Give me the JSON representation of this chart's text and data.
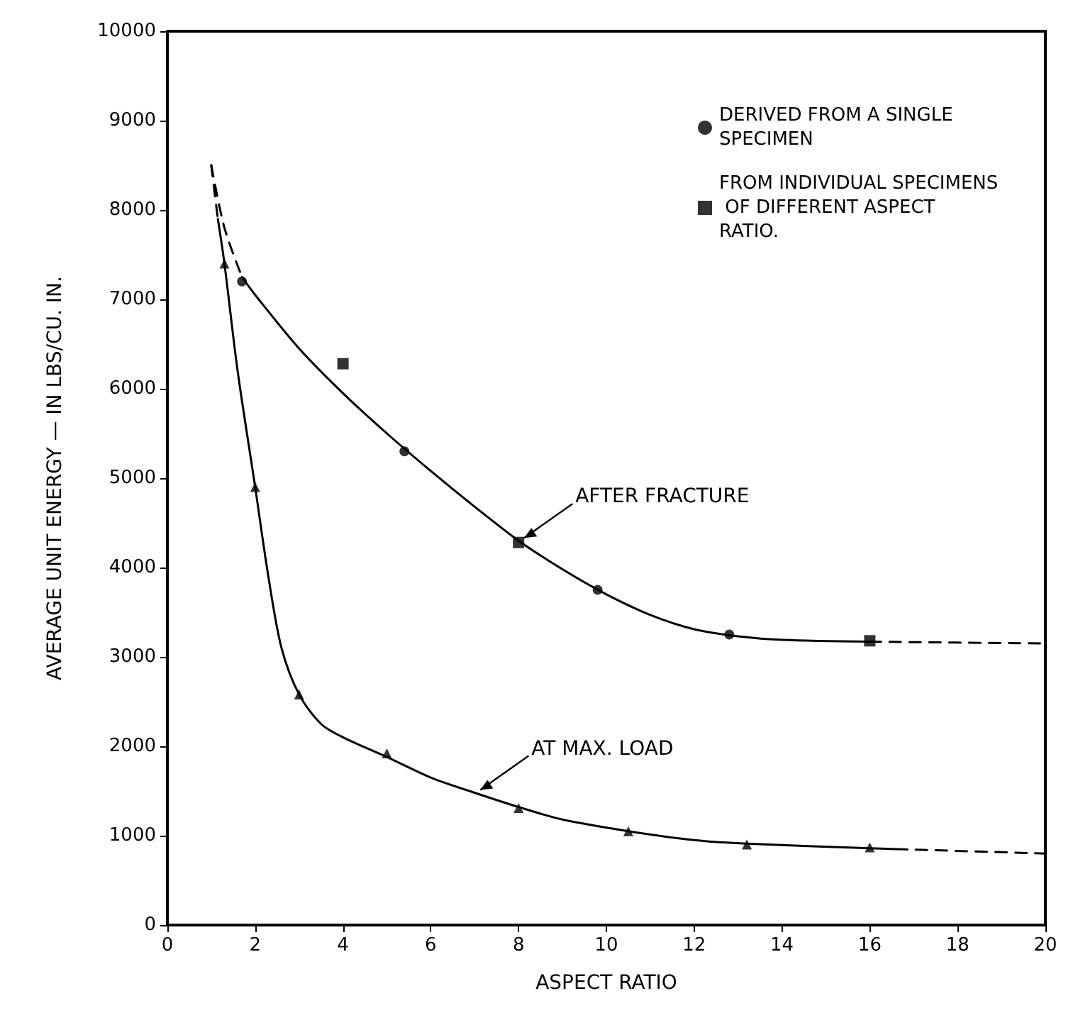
{
  "chart_data": {
    "type": "scatter",
    "xlabel": "ASPECT RATIO",
    "ylabel": "AVERAGE UNIT ENERGY — IN LBS/CU. IN.",
    "xlim": [
      0,
      20
    ],
    "xticks": [
      0,
      2,
      4,
      6,
      8,
      10,
      12,
      14,
      16,
      18,
      20
    ],
    "ylim": [
      0,
      10000
    ],
    "yticks": [
      0,
      1000,
      2000,
      3000,
      4000,
      5000,
      6000,
      7000,
      8000,
      9000,
      10000
    ],
    "grid": false,
    "legend": "top right",
    "annotations": [
      {
        "text": "AFTER FRACTURE",
        "x": 8,
        "y": 4300
      },
      {
        "text": "AT MAX. LOAD",
        "x": 7,
        "y": 1480
      }
    ],
    "series": [
      {
        "name": "DERIVED FROM A SINGLE SPECIMEN",
        "marker": "circle",
        "color": "#000000",
        "x": [
          1.7,
          5.4,
          9.8,
          12.8
        ],
        "values": [
          7200,
          5300,
          3750,
          3250
        ]
      },
      {
        "name": "FROM INDIVIDUAL SPECIMENS OF DIFFERENT ASPECT RATIO.",
        "marker": "square",
        "color": "#000000",
        "x": [
          4,
          8,
          16
        ],
        "values": [
          6280,
          4280,
          3180
        ]
      },
      {
        "marker": "triangle",
        "color": "#000000",
        "x": [
          1.3,
          2,
          3,
          5,
          8,
          10.5,
          13.2,
          16
        ],
        "values": [
          7400,
          4900,
          2580,
          1920,
          1310,
          1050,
          900,
          870
        ]
      },
      {
        "type": "line",
        "line_style": "solid",
        "marker": "none",
        "color": "#000000",
        "x": [
          1.7,
          2,
          3,
          4,
          5,
          6,
          7,
          8,
          9,
          10,
          11,
          12,
          13,
          14,
          16
        ],
        "values": [
          7250,
          7050,
          6450,
          5950,
          5500,
          5080,
          4680,
          4300,
          3980,
          3700,
          3470,
          3310,
          3230,
          3190,
          3170
        ]
      },
      {
        "type": "line",
        "line_style": "dashed",
        "marker": "none",
        "color": "#000000",
        "x": [
          1,
          1.3,
          1.7
        ],
        "values": [
          8500,
          7800,
          7250
        ]
      },
      {
        "type": "line",
        "line_style": "dashed",
        "marker": "none",
        "color": "#000000",
        "x": [
          16,
          20
        ],
        "values": [
          3170,
          3150
        ]
      },
      {
        "type": "line",
        "line_style": "solid",
        "marker": "none",
        "color": "#000000",
        "x": [
          1.15,
          1.3,
          1.6,
          2,
          2.3,
          2.6,
          3,
          3.5,
          4,
          5,
          6,
          7,
          8,
          9,
          10.5,
          12,
          13.2,
          16,
          16.6
        ],
        "values": [
          7900,
          7400,
          6200,
          4900,
          3900,
          3100,
          2580,
          2250,
          2100,
          1880,
          1650,
          1480,
          1320,
          1180,
          1050,
          950,
          910,
          860,
          850
        ]
      },
      {
        "type": "line",
        "line_style": "dashed",
        "marker": "none",
        "color": "#000000",
        "x": [
          1,
          1.15
        ],
        "values": [
          8500,
          7900
        ]
      },
      {
        "type": "line",
        "line_style": "dashed",
        "marker": "none",
        "color": "#000000",
        "x": [
          16.6,
          20
        ],
        "values": [
          850,
          800
        ]
      }
    ]
  }
}
